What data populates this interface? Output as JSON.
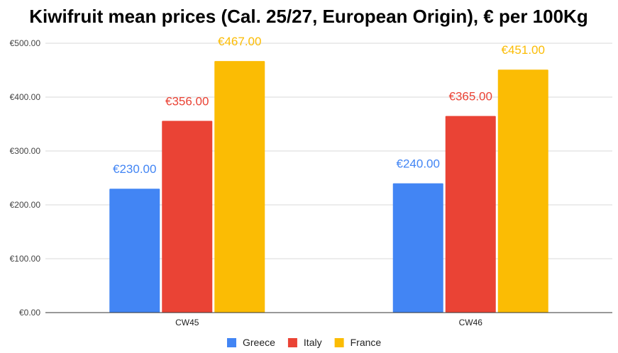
{
  "chart_data": {
    "type": "bar",
    "title": "Kiwifruit mean prices (Cal. 25/27, European Origin), € per 100Kg",
    "xlabel": "",
    "ylabel": "",
    "categories": [
      "CW45",
      "CW46"
    ],
    "series": [
      {
        "name": "Greece",
        "color": "#4285f4",
        "values": [
          230,
          240
        ],
        "labels": [
          "€230.00",
          "€240.00"
        ]
      },
      {
        "name": "Italy",
        "color": "#ea4335",
        "values": [
          356,
          365
        ],
        "labels": [
          "€356.00",
          "€365.00"
        ]
      },
      {
        "name": "France",
        "color": "#fbbc04",
        "values": [
          467,
          451
        ],
        "labels": [
          "€467.00",
          "€451.00"
        ]
      }
    ],
    "ylim": [
      0,
      500
    ],
    "yticks": [
      0,
      100,
      200,
      300,
      400,
      500
    ],
    "ytick_labels": [
      "€0.00",
      "€100.00",
      "€200.00",
      "€300.00",
      "€400.00",
      "€500.00"
    ],
    "grid": true,
    "legend_position": "bottom"
  }
}
